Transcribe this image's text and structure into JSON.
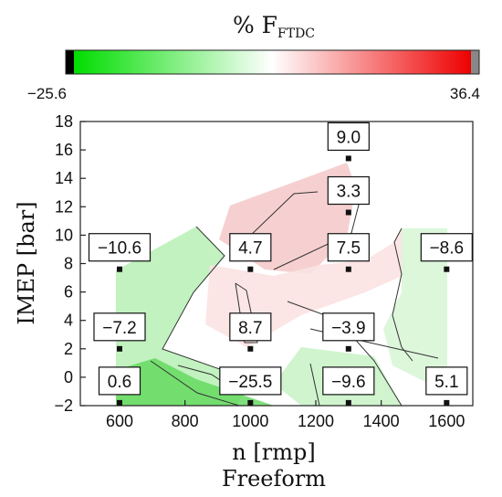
{
  "chart_data": {
    "type": "heatmap",
    "colorbar": {
      "title_main": "% F",
      "title_sub": "FTDC",
      "min_label": "−25.6",
      "max_label": "36.4",
      "min": -25.6,
      "max": 36.4,
      "colors": {
        "low_end": "#000000",
        "low": "#00dd00",
        "mid": "#ffffff",
        "high": "#ee0000",
        "high_end": "#808080"
      }
    },
    "xlabel": "n [rmp]",
    "ylabel": "IMEP [bar]",
    "subtitle": "Freeform",
    "xlim": [
      480,
      1680
    ],
    "ylim": [
      -2,
      18
    ],
    "xticks": [
      600,
      800,
      1000,
      1200,
      1400,
      1600
    ],
    "yticks": [
      -2,
      0,
      2,
      4,
      6,
      8,
      10,
      12,
      14,
      16,
      18
    ],
    "points": [
      {
        "x": 600,
        "y": 7.6,
        "label": "−10.6"
      },
      {
        "x": 1000,
        "y": 7.6,
        "label": "4.7"
      },
      {
        "x": 1300,
        "y": 7.6,
        "label": "7.5"
      },
      {
        "x": 1600,
        "y": 7.6,
        "label": "−8.6"
      },
      {
        "x": 1300,
        "y": 15.4,
        "label": "9.0"
      },
      {
        "x": 1300,
        "y": 11.6,
        "label": "3.3"
      },
      {
        "x": 600,
        "y": 2.0,
        "label": "−7.2"
      },
      {
        "x": 1000,
        "y": 2.0,
        "label": "8.7"
      },
      {
        "x": 1300,
        "y": 2.0,
        "label": "−3.9"
      },
      {
        "x": 600,
        "y": -1.8,
        "label": "0.6"
      },
      {
        "x": 1000,
        "y": -1.8,
        "label": "−25.5"
      },
      {
        "x": 1300,
        "y": -1.8,
        "label": "−9.6"
      },
      {
        "x": 1600,
        "y": -1.8,
        "label": "5.1"
      }
    ]
  }
}
